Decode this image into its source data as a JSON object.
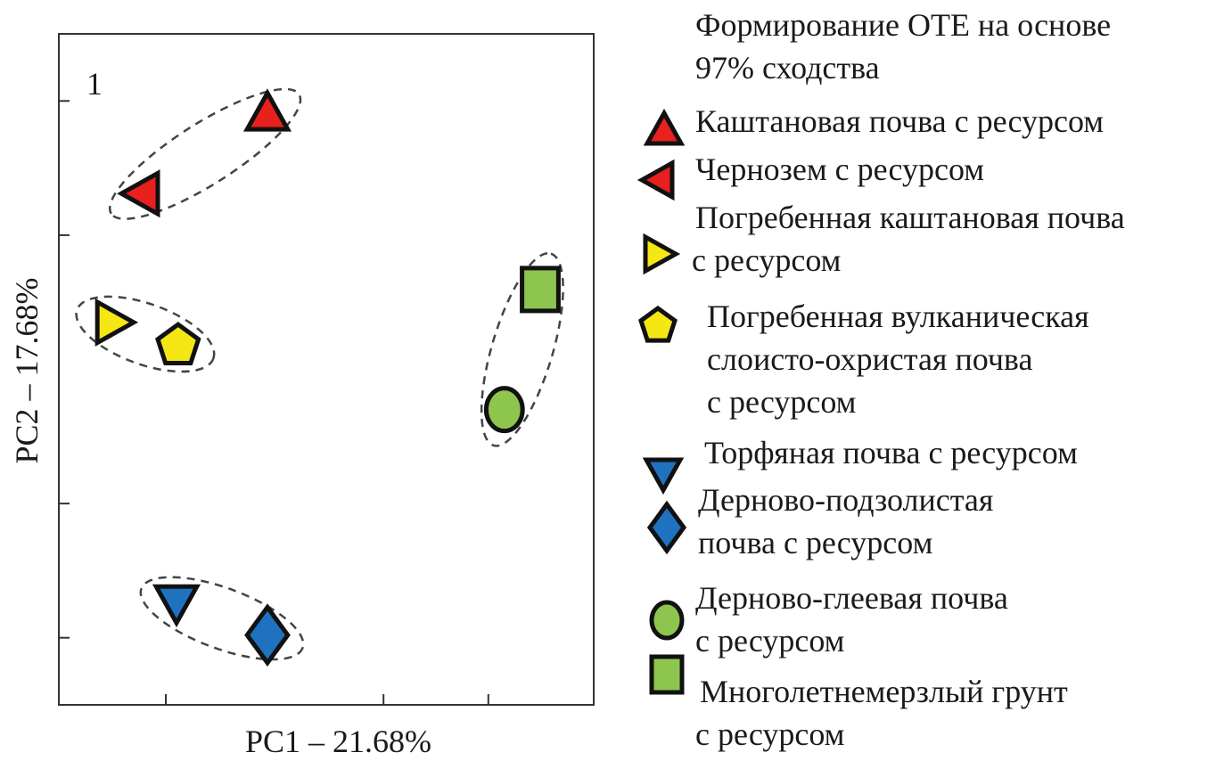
{
  "chart_data": {
    "type": "scatter",
    "panel_label": "1",
    "xlabel": "PC1 – 21.68%",
    "ylabel": "PC2 – 17.68%",
    "xlim": [
      0,
      100
    ],
    "ylim": [
      0,
      100
    ],
    "x_ticks": [
      20,
      60.7,
      80.3
    ],
    "y_ticks": [
      10,
      30,
      70,
      90
    ],
    "grid": false,
    "legend_position": "right",
    "legend_title": [
      "Формирование ОТЕ на основе",
      "97% сходства"
    ],
    "series": [
      {
        "name": [
          "Каштановая почва с ресурсом"
        ],
        "marker": "triangle-up",
        "color": "#e8201e",
        "x": 39,
        "y": 88
      },
      {
        "name": [
          "Чернозем с ресурсом"
        ],
        "marker": "triangle-left",
        "color": "#e8201e",
        "x": 15.7,
        "y": 76.2
      },
      {
        "name": [
          "Погребенная каштановая почва",
          "с ресурсом"
        ],
        "marker": "triangle-right",
        "color": "#f4e714",
        "x": 10,
        "y": 57
      },
      {
        "name": [
          "Погребенная вулканическая",
          "слоисто-охристая почва",
          "с ресурсом"
        ],
        "marker": "pentagon",
        "color": "#f4e714",
        "x": 22.3,
        "y": 53.5
      },
      {
        "name": [
          "Торфяная почва с ресурсом"
        ],
        "marker": "triangle-down",
        "color": "#1f72c0",
        "x": 22,
        "y": 15.4
      },
      {
        "name": [
          "Дерново-подзолистая",
          "почва с ресурсом"
        ],
        "marker": "diamond",
        "color": "#1f72c0",
        "x": 39,
        "y": 10.4
      },
      {
        "name": [
          "Дерново-глеевая почва",
          "с ресурсом"
        ],
        "marker": "circle",
        "color": "#8dc54f",
        "x": 83.3,
        "y": 44
      },
      {
        "name": [
          "Многолетнемерзлый грунт",
          "с ресурсом"
        ],
        "marker": "square",
        "color": "#8dc54f",
        "x": 90,
        "y": 61.9
      }
    ],
    "clusters": [
      [
        0,
        1
      ],
      [
        2,
        3
      ],
      [
        4,
        5
      ],
      [
        6,
        7
      ]
    ]
  }
}
